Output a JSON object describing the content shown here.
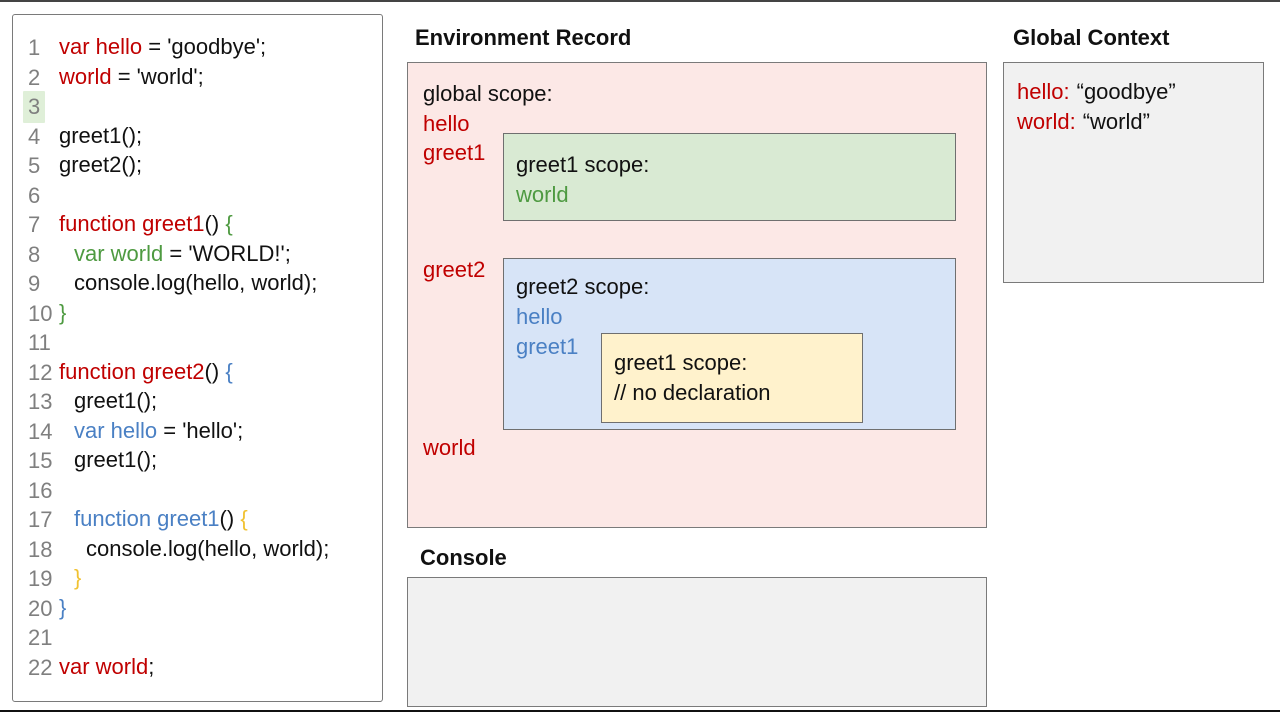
{
  "colors": {
    "syntax_red": "#c00000",
    "syntax_green": "#4e9a41",
    "syntax_blue": "#4a80c4",
    "syntax_yellow": "#f1c232",
    "line_number_gray": "#7f7f7f",
    "code_black": "#111111",
    "panel_border": "#7a7a7a",
    "er_bg": "#fce8e6",
    "greet1_scope_bg": "#d9ead3",
    "greet2_scope_bg": "#d7e4f7",
    "inner_greet1_bg": "#fff2cc",
    "context_bg": "#f1f1f1",
    "line_highlight": "#dfefd8"
  },
  "code": {
    "lines": [
      {
        "n": 1,
        "indent": 0,
        "hl": false,
        "tokens": [
          {
            "t": "var hello",
            "c": "red"
          },
          {
            "t": " = 'goodbye';",
            "c": "k"
          }
        ]
      },
      {
        "n": 2,
        "indent": 0,
        "hl": false,
        "tokens": [
          {
            "t": "world",
            "c": "red"
          },
          {
            "t": " = 'world';",
            "c": "k"
          }
        ]
      },
      {
        "n": 3,
        "indent": 0,
        "hl": true,
        "tokens": []
      },
      {
        "n": 4,
        "indent": 0,
        "hl": false,
        "tokens": [
          {
            "t": "greet1();",
            "c": "k"
          }
        ]
      },
      {
        "n": 5,
        "indent": 0,
        "hl": false,
        "tokens": [
          {
            "t": "greet2();",
            "c": "k"
          }
        ]
      },
      {
        "n": 6,
        "indent": 0,
        "hl": false,
        "tokens": []
      },
      {
        "n": 7,
        "indent": 0,
        "hl": false,
        "tokens": [
          {
            "t": "function greet1",
            "c": "red"
          },
          {
            "t": "() ",
            "c": "k"
          },
          {
            "t": "{",
            "c": "green"
          }
        ]
      },
      {
        "n": 8,
        "indent": 1,
        "hl": false,
        "tokens": [
          {
            "t": "var world",
            "c": "green"
          },
          {
            "t": " = 'WORLD!';",
            "c": "k"
          }
        ]
      },
      {
        "n": 9,
        "indent": 1,
        "hl": false,
        "tokens": [
          {
            "t": "console.log(hello, world);",
            "c": "k"
          }
        ]
      },
      {
        "n": 10,
        "indent": 0,
        "hl": false,
        "tokens": [
          {
            "t": "}",
            "c": "green"
          }
        ]
      },
      {
        "n": 11,
        "indent": 0,
        "hl": false,
        "tokens": []
      },
      {
        "n": 12,
        "indent": 0,
        "hl": false,
        "tokens": [
          {
            "t": "function greet2",
            "c": "red"
          },
          {
            "t": "() ",
            "c": "k"
          },
          {
            "t": "{",
            "c": "blue"
          }
        ]
      },
      {
        "n": 13,
        "indent": 1,
        "hl": false,
        "tokens": [
          {
            "t": "greet1();",
            "c": "k"
          }
        ]
      },
      {
        "n": 14,
        "indent": 1,
        "hl": false,
        "tokens": [
          {
            "t": "var hello",
            "c": "blue"
          },
          {
            "t": " = 'hello';",
            "c": "k"
          }
        ]
      },
      {
        "n": 15,
        "indent": 1,
        "hl": false,
        "tokens": [
          {
            "t": "greet1();",
            "c": "k"
          }
        ]
      },
      {
        "n": 16,
        "indent": 0,
        "hl": false,
        "tokens": []
      },
      {
        "n": 17,
        "indent": 1,
        "hl": false,
        "tokens": [
          {
            "t": "function greet1",
            "c": "blue"
          },
          {
            "t": "() ",
            "c": "k"
          },
          {
            "t": "{",
            "c": "yellow"
          }
        ]
      },
      {
        "n": 18,
        "indent": 2,
        "hl": false,
        "tokens": [
          {
            "t": "console.log(hello, world);",
            "c": "k"
          }
        ]
      },
      {
        "n": 19,
        "indent": 1,
        "hl": false,
        "tokens": [
          {
            "t": "}",
            "c": "yellow"
          }
        ]
      },
      {
        "n": 20,
        "indent": 0,
        "hl": false,
        "tokens": [
          {
            "t": "}",
            "c": "blue"
          }
        ]
      },
      {
        "n": 21,
        "indent": 0,
        "hl": false,
        "tokens": []
      },
      {
        "n": 22,
        "indent": 0,
        "hl": false,
        "tokens": [
          {
            "t": "var world",
            "c": "red"
          },
          {
            "t": ";",
            "c": "k"
          }
        ]
      }
    ]
  },
  "environment_record": {
    "title": "Environment Record",
    "global_label": "global scope:",
    "hello": "hello",
    "greet1": "greet1",
    "greet2": "greet2",
    "world": "world",
    "greet1_scope": {
      "label": "greet1 scope:",
      "world": "world"
    },
    "greet2_scope": {
      "label": "greet2 scope:",
      "hello": "hello",
      "greet1": "greet1",
      "greet1_inner": {
        "label": "greet1 scope:",
        "comment": "// no declaration"
      }
    }
  },
  "global_context": {
    "title": "Global Context",
    "hello_key": "hello:",
    "hello_val": "“goodbye”",
    "world_key": "world:",
    "world_val": "“world”"
  },
  "console": {
    "title": "Console",
    "content": ""
  }
}
